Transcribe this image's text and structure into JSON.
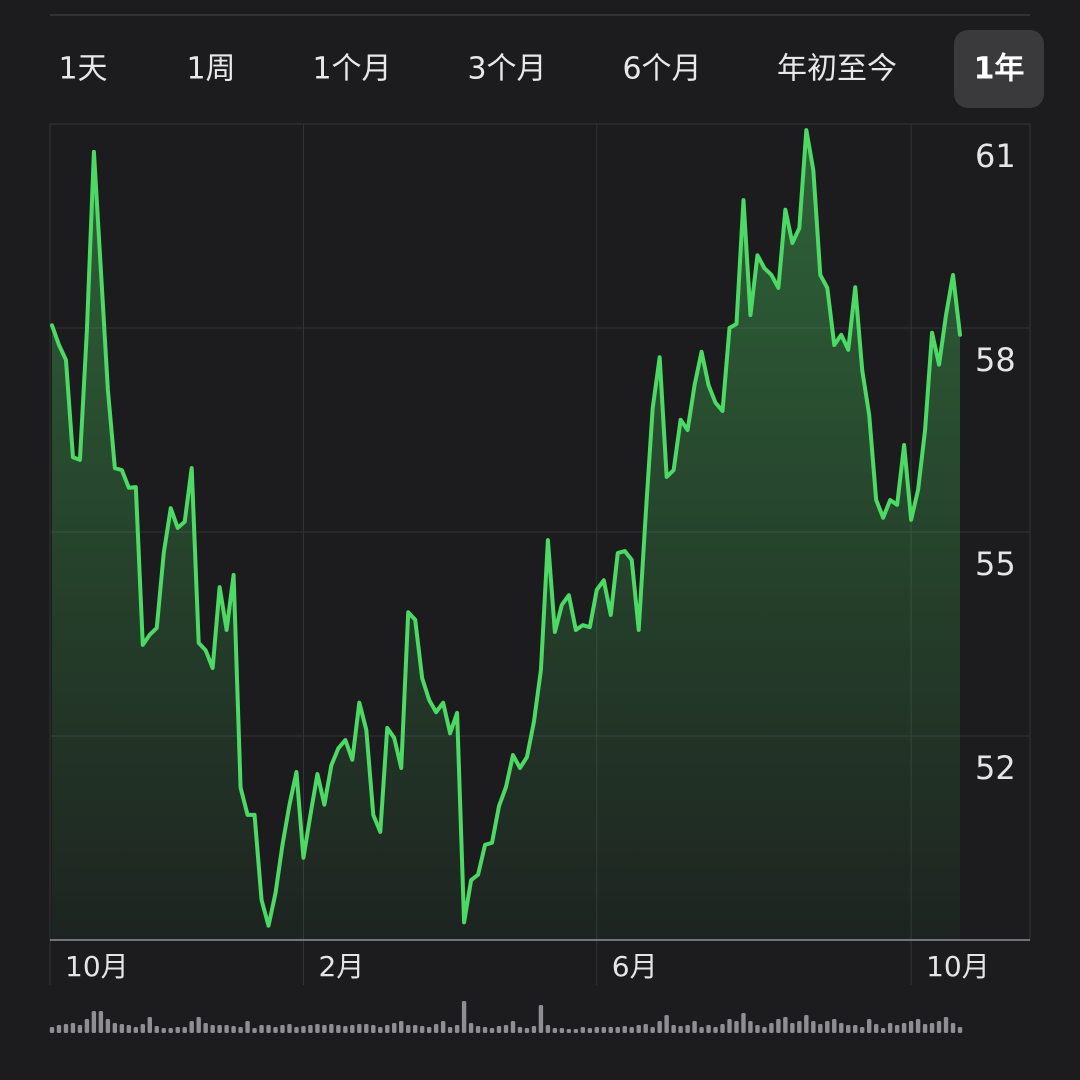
{
  "tabs": [
    "1天",
    "1周",
    "1个月",
    "3个月",
    "6个月",
    "年初至今",
    "1年"
  ],
  "selected_tab": 6,
  "chart_data": {
    "type": "line",
    "color": "#4cd964",
    "categories": [
      "10月",
      null,
      null,
      null,
      null,
      null,
      null,
      null,
      null,
      null,
      null,
      null,
      null,
      null,
      null,
      null,
      null,
      null,
      null,
      null,
      null,
      null,
      null,
      null,
      null,
      null,
      null,
      null,
      null,
      null,
      null,
      null,
      null,
      null,
      null,
      null,
      "2月",
      null,
      null,
      null,
      null,
      null,
      null,
      null,
      null,
      null,
      null,
      null,
      null,
      null,
      null,
      null,
      null,
      null,
      null,
      null,
      null,
      null,
      null,
      null,
      null,
      null,
      null,
      null,
      null,
      null,
      null,
      null,
      null,
      null,
      null,
      null,
      null,
      null,
      null,
      null,
      null,
      null,
      "6月",
      null,
      null,
      null,
      null,
      null,
      null,
      null,
      null,
      null,
      null,
      null,
      null,
      null,
      null,
      null,
      null,
      null,
      null,
      null,
      null,
      null,
      null,
      null,
      null,
      null,
      null,
      null,
      null,
      null,
      null,
      null,
      null,
      null,
      null,
      null,
      null,
      null,
      null,
      null,
      null,
      null,
      null,
      null,
      null,
      "10月",
      null,
      null,
      null,
      null,
      null,
      null,
      null
    ],
    "values": [
      58.04,
      57.75,
      57.53,
      56.1,
      56.06,
      57.97,
      60.59,
      58.85,
      57.09,
      55.94,
      55.91,
      55.65,
      55.66,
      53.34,
      53.49,
      53.59,
      54.69,
      55.35,
      55.06,
      55.15,
      55.94,
      53.37,
      53.26,
      53.0,
      54.19,
      53.56,
      54.37,
      51.24,
      50.84,
      50.84,
      49.59,
      49.21,
      49.69,
      50.4,
      50.99,
      51.47,
      50.21,
      50.84,
      51.44,
      50.99,
      51.57,
      51.82,
      51.94,
      51.65,
      52.49,
      52.09,
      50.84,
      50.59,
      52.12,
      51.97,
      51.53,
      53.82,
      53.71,
      52.85,
      52.53,
      52.35,
      52.49,
      52.04,
      52.34,
      49.26,
      49.88,
      49.96,
      50.4,
      50.43,
      50.97,
      51.25,
      51.72,
      51.53,
      51.69,
      52.21,
      52.97,
      54.88,
      53.53,
      53.93,
      54.07,
      53.56,
      53.63,
      53.6,
      54.15,
      54.29,
      53.78,
      54.69,
      54.72,
      54.59,
      53.56,
      55.25,
      56.82,
      57.57,
      55.81,
      55.91,
      56.65,
      56.5,
      57.16,
      57.65,
      57.16,
      56.9,
      56.78,
      58.0,
      58.06,
      59.88,
      58.19,
      59.07,
      58.88,
      58.78,
      58.59,
      59.74,
      59.25,
      59.47,
      60.91,
      60.32,
      58.78,
      58.59,
      57.75,
      57.9,
      57.68,
      58.6,
      57.38,
      56.72,
      55.47,
      55.21,
      55.47,
      55.4,
      56.28,
      55.18,
      55.62,
      56.5,
      57.93,
      57.46,
      58.19,
      58.78,
      57.9
    ],
    "volume": [
      6,
      8,
      9,
      10,
      8,
      14,
      22,
      22,
      14,
      10,
      9,
      8,
      6,
      9,
      16,
      7,
      5,
      5,
      6,
      6,
      12,
      16,
      10,
      8,
      8,
      8,
      7,
      6,
      12,
      5,
      8,
      8,
      6,
      8,
      9,
      6,
      7,
      8,
      9,
      8,
      9,
      8,
      7,
      8,
      9,
      9,
      8,
      6,
      8,
      10,
      12,
      8,
      8,
      7,
      6,
      9,
      12,
      6,
      8,
      32,
      10,
      7,
      6,
      5,
      7,
      8,
      12,
      6,
      5,
      7,
      28,
      8,
      5,
      5,
      4,
      4,
      6,
      5,
      6,
      6,
      6,
      6,
      7,
      6,
      8,
      9,
      6,
      12,
      18,
      8,
      7,
      8,
      12,
      6,
      8,
      6,
      9,
      14,
      12,
      20,
      12,
      8,
      6,
      10,
      14,
      16,
      10,
      12,
      18,
      12,
      9,
      12,
      14,
      10,
      8,
      8,
      6,
      14,
      9,
      5,
      10,
      8,
      10,
      12,
      14,
      9,
      10,
      12,
      16,
      10,
      6
    ],
    "ylim": [
      49,
      61
    ],
    "yticks": [
      52,
      55,
      58,
      61
    ],
    "grid": true
  }
}
